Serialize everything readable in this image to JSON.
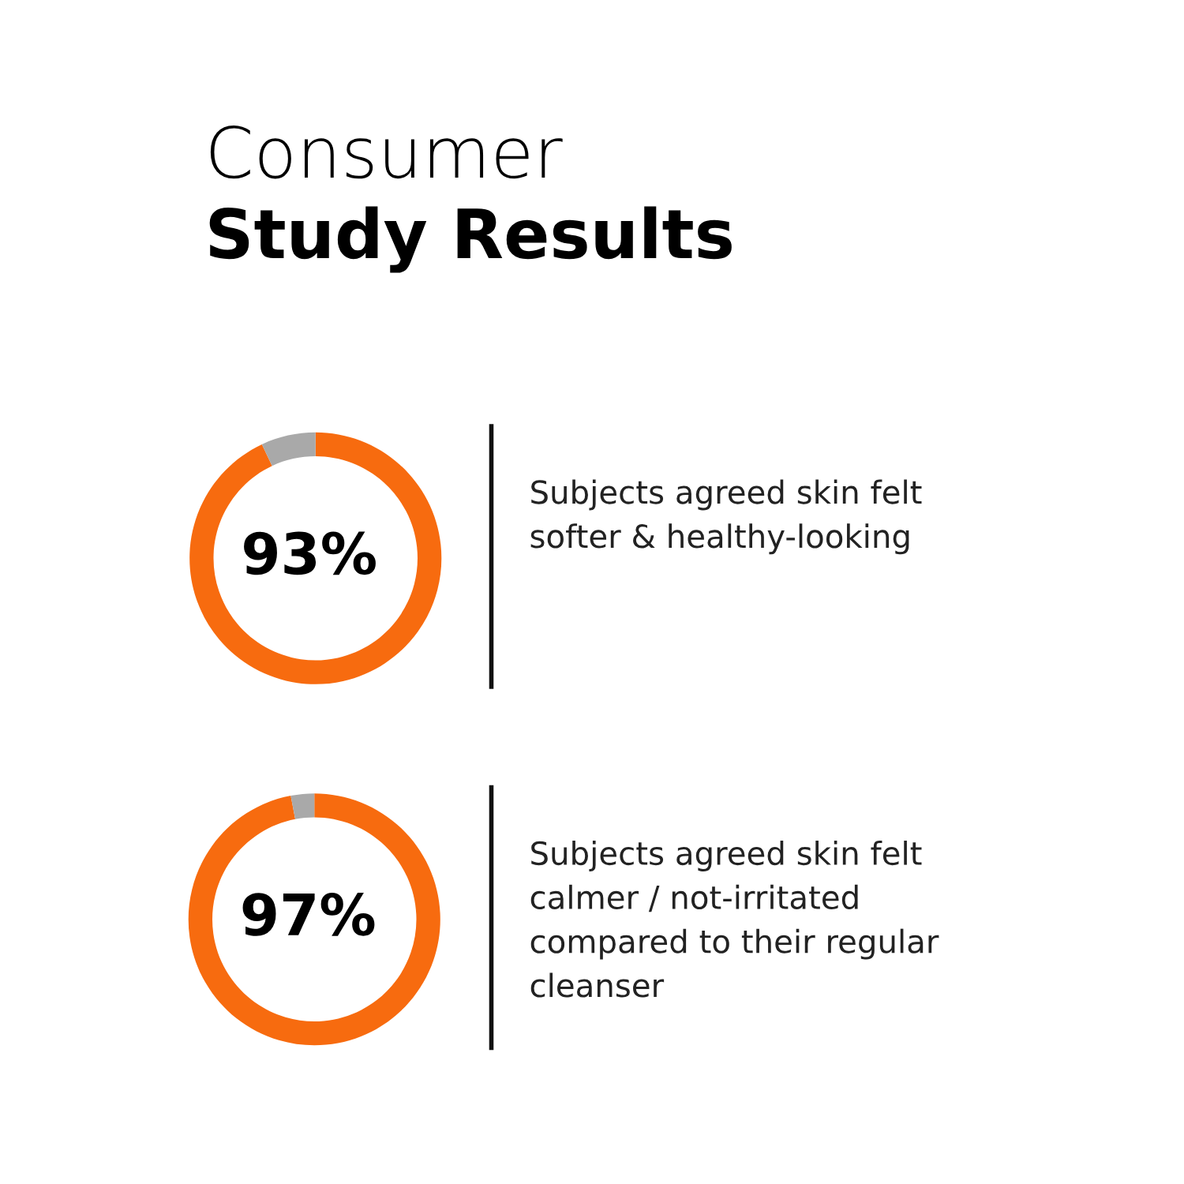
{
  "chart_data": [
    {
      "type": "donut",
      "title": "Consumer",
      "subtitle": "Study Results",
      "categories": [
        null,
        null
      ],
      "values": [
        93,
        7
      ],
      "colors": [
        "#f76b0f",
        "#a9a9a9"
      ],
      "value_labels": [
        "93%",
        null
      ],
      "annotations": [
        "Subjects agreed skin felt\nsofter & healthy-looking"
      ]
    },
    {
      "type": "donut",
      "categories": [
        null,
        null
      ],
      "values": [
        97,
        3
      ],
      "colors": [
        "#f76b0f",
        "#a9a9a9"
      ],
      "value_labels": [
        "97%",
        null
      ],
      "annotations": [
        "Subjects agreed skin felt\ncalmer / not-irritated\ncompared to their regular\ncleanser"
      ]
    }
  ]
}
